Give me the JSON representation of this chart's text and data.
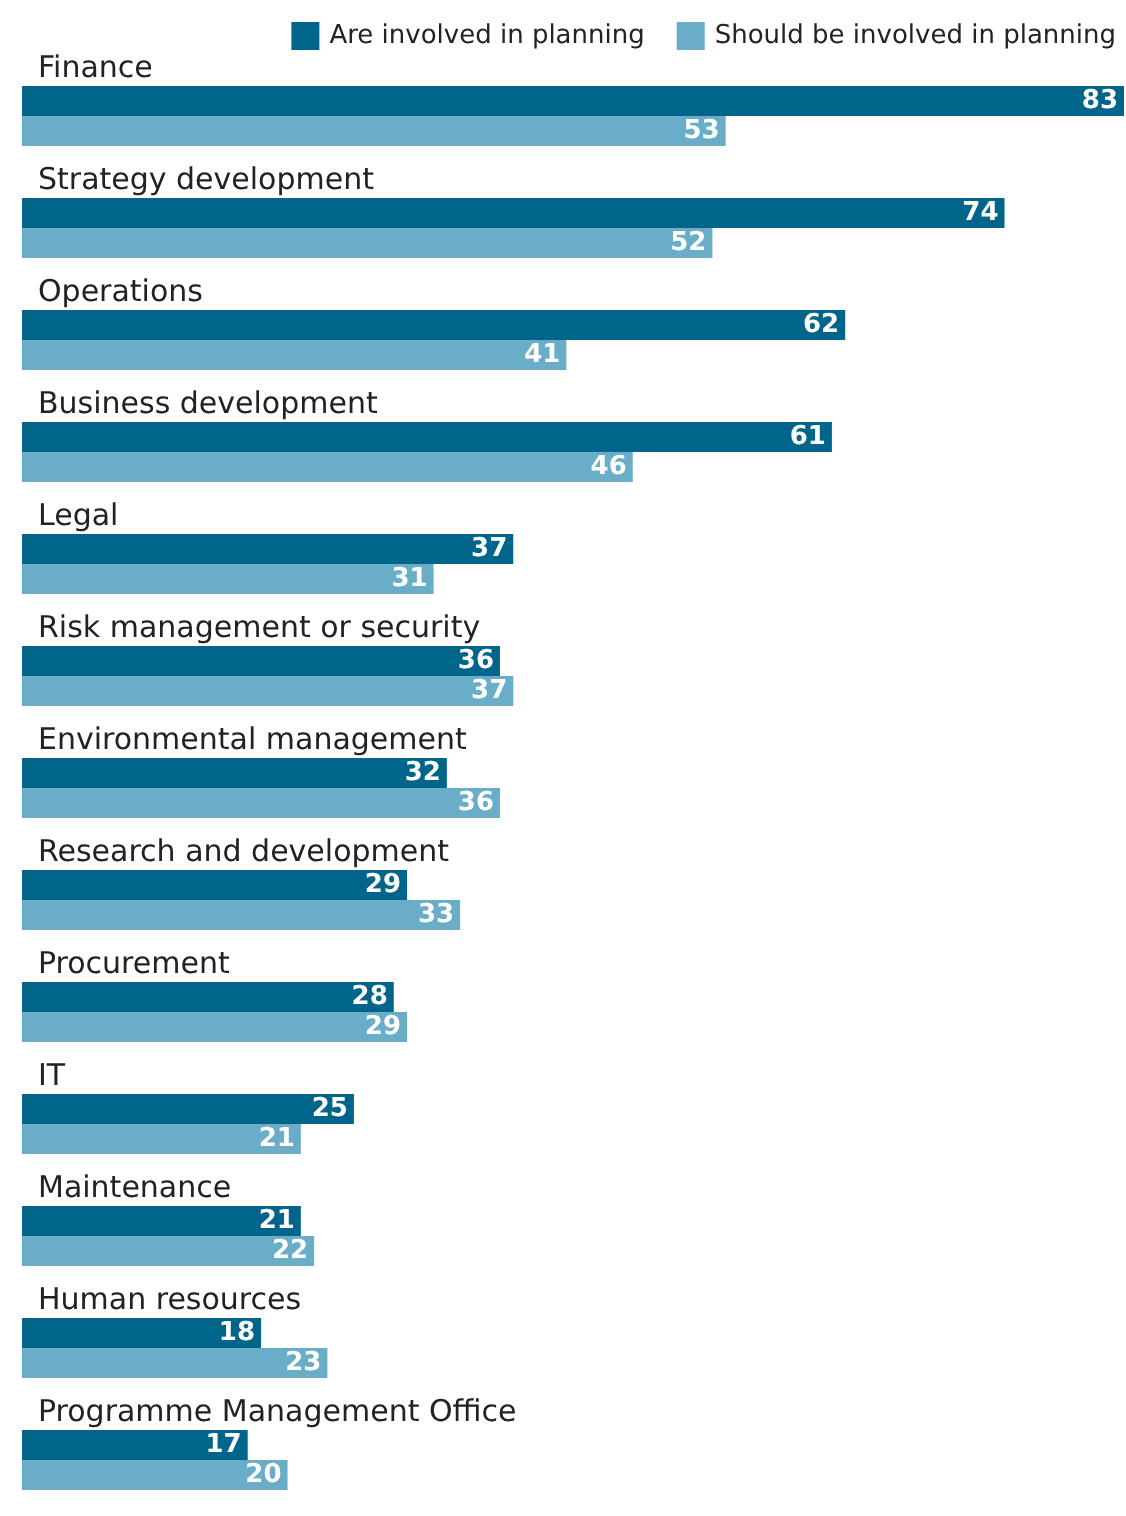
{
  "chart_data": {
    "type": "bar",
    "orientation": "horizontal",
    "data_labels": true,
    "legend": "top right",
    "grid": false,
    "categories": [
      "Finance",
      "Strategy development",
      "Operations",
      "Business development",
      "Legal",
      "Risk management or security",
      "Environmental management",
      "Research and development",
      "Procurement",
      "IT",
      "Maintenance",
      "Human resources",
      "Programme Management Office"
    ],
    "series": [
      {
        "name": "Are involved in planning",
        "color": "#00658a",
        "values": [
          83,
          74,
          62,
          61,
          37,
          36,
          32,
          29,
          28,
          25,
          21,
          18,
          17
        ]
      },
      {
        "name": "Should be involved in planning",
        "color": "#6aadc8",
        "values": [
          53,
          52,
          41,
          46,
          31,
          37,
          36,
          33,
          29,
          21,
          22,
          23,
          20
        ]
      }
    ]
  }
}
